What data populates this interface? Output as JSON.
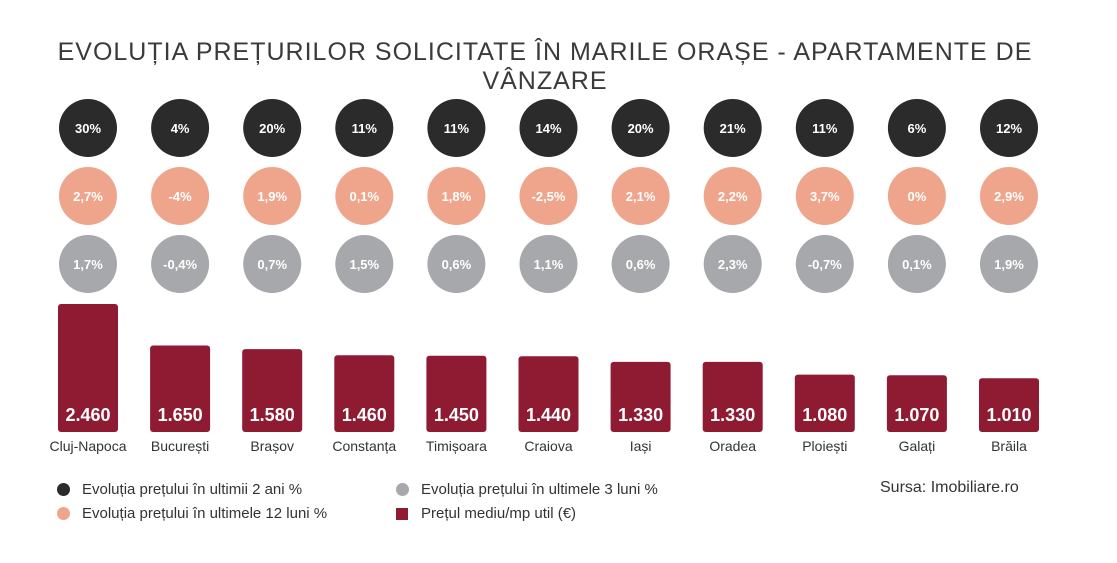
{
  "title": "EVOLUȚIA PREȚURILOR SOLICITATE ÎN MARILE ORAȘE - APARTAMENTE DE VÂNZARE",
  "source": "Sursa: Imobiliare.ro",
  "colors": {
    "change_2y": "#2b2b2b",
    "change_12m": "#eea58c",
    "change_3m": "#a7a8ab",
    "price": "#8f1b32"
  },
  "legend": {
    "change_2y": "Evoluția prețului în ultimii 2 ani %",
    "change_12m": "Evoluția prețului în ultimele 12 luni %",
    "change_3m": "Evoluția prețului în ultimele 3 luni %",
    "price": "Prețul mediu/mp util (€)"
  },
  "chart_data": {
    "type": "bar",
    "title": "EVOLUȚIA PREȚURILOR SOLICITATE ÎN MARILE ORAȘE - APARTAMENTE DE VÂNZARE",
    "categories": [
      "Cluj-Napoca",
      "București",
      "Brașov",
      "Constanța",
      "Timișoara",
      "Craiova",
      "Iași",
      "Oradea",
      "Ploiești",
      "Galați",
      "Brăila"
    ],
    "series": [
      {
        "name": "Prețul mediu/mp util (€)",
        "values": [
          2460,
          1650,
          1580,
          1460,
          1450,
          1440,
          1330,
          1330,
          1080,
          1070,
          1010
        ],
        "labels": [
          "2.460",
          "1.650",
          "1.580",
          "1.460",
          "1.450",
          "1.440",
          "1.330",
          "1.330",
          "1.080",
          "1.070",
          "1.010"
        ]
      },
      {
        "name": "Evoluția prețului în ultimii 2 ani %",
        "values": [
          30,
          4,
          20,
          11,
          11,
          14,
          20,
          21,
          11,
          6,
          12
        ],
        "labels": [
          "30%",
          "4%",
          "20%",
          "11%",
          "11%",
          "14%",
          "20%",
          "21%",
          "11%",
          "6%",
          "12%"
        ]
      },
      {
        "name": "Evoluția prețului în ultimele 12 luni %",
        "values": [
          2.7,
          -4,
          1.9,
          0.1,
          1.8,
          -2.5,
          2.1,
          2.2,
          3.7,
          0,
          2.9
        ],
        "labels": [
          "2,7%",
          "-4%",
          "1,9%",
          "0,1%",
          "1,8%",
          "-2,5%",
          "2,1%",
          "2,2%",
          "3,7%",
          "0%",
          "2,9%"
        ]
      },
      {
        "name": "Evoluția prețului în ultimele 3 luni %",
        "values": [
          1.7,
          -0.4,
          0.7,
          1.5,
          0.6,
          1.1,
          0.6,
          2.3,
          -0.7,
          0.1,
          1.9
        ],
        "labels": [
          "1,7%",
          "-0,4%",
          "0,7%",
          "1,5%",
          "0,6%",
          "1,1%",
          "0,6%",
          "2,3%",
          "-0,7%",
          "0,1%",
          "1,9%"
        ]
      }
    ],
    "legend_position": "bottom",
    "grid": false
  }
}
